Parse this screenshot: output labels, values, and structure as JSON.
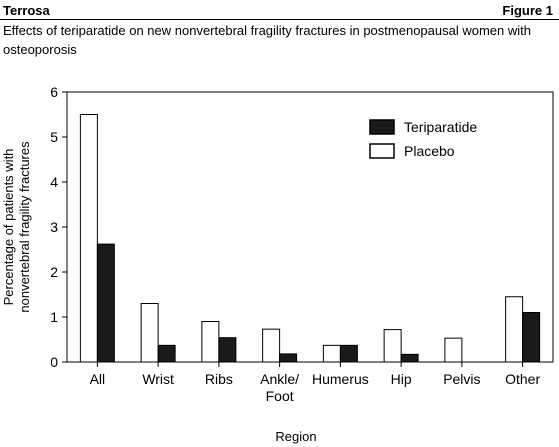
{
  "header": {
    "left": "Terrosa",
    "right": "Figure 1"
  },
  "colors": {
    "teriparatide": "#1a1a1a",
    "placebo": "#ffffff",
    "stroke": "#000000"
  },
  "chart_data": {
    "type": "bar",
    "title": "Effects of teriparatide on new nonvertebral fragility fractures in postmenopausal women with osteoporosis",
    "xlabel": "Region",
    "ylabel": [
      "Percentage of patients with",
      "nonvertebral fragility fractures"
    ],
    "ylim": [
      0,
      6
    ],
    "yticks": [
      "0",
      "1",
      "2",
      "3",
      "4",
      "5",
      "6"
    ],
    "categories": [
      [
        "All"
      ],
      [
        "Wrist"
      ],
      [
        "Ribs"
      ],
      [
        "Ankle/",
        "Foot"
      ],
      [
        "Humerus"
      ],
      [
        "Hip"
      ],
      [
        "Pelvis"
      ],
      [
        "Other"
      ]
    ],
    "series": [
      {
        "name": "Placebo",
        "values": [
          5.5,
          1.3,
          0.9,
          0.73,
          0.37,
          0.72,
          0.53,
          1.45
        ]
      },
      {
        "name": "Teriparatide",
        "values": [
          2.62,
          0.37,
          0.54,
          0.18,
          0.37,
          0.17,
          0.0,
          1.1
        ]
      }
    ],
    "legend": {
      "position": "top-right",
      "entries": [
        "Teriparatide",
        "Placebo"
      ]
    },
    "grid": false
  }
}
